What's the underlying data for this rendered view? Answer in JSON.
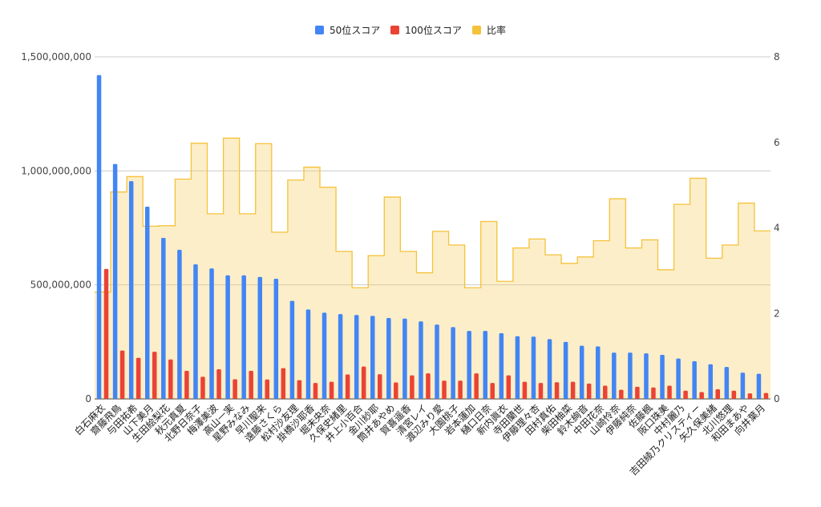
{
  "chart_data": {
    "type": "bar",
    "categories": [
      "白石麻衣",
      "齋藤飛鳥",
      "与田祐希",
      "山下美月",
      "生田絵梨花",
      "秋元真夏",
      "北野日奈子",
      "梅澤美波",
      "高山一実",
      "星野みなみ",
      "早川聖来",
      "遠藤さくら",
      "松村沙友理",
      "掛橋沙耶香",
      "堀未央奈",
      "久保史緒里",
      "井上小百合",
      "金川紗耶",
      "筒井あやめ",
      "賀喜遥香",
      "清宮レイ",
      "渡辺みり愛",
      "大園桃子",
      "岩本蓮加",
      "樋口日奈",
      "新内眞衣",
      "寺田蘭世",
      "伊藤理々杏",
      "田村真佑",
      "柴田柚菜",
      "鈴木絢音",
      "中田花奈",
      "山崎怜奈",
      "伊藤純奈",
      "佐藤楓",
      "阪口珠美",
      "中村麗乃",
      "吉田綾乃クリスティー",
      "矢久保美緒",
      "北川悠理",
      "和田まあや",
      "向井葉月"
    ],
    "series": [
      {
        "name": "50位スコア",
        "axis": "left",
        "color": "#4285f4",
        "values": [
          1420000000,
          1030000000,
          955000000,
          843000000,
          706000000,
          654000000,
          590000000,
          572000000,
          542000000,
          542000000,
          535000000,
          527000000,
          430000000,
          392000000,
          378000000,
          372000000,
          368000000,
          364000000,
          355000000,
          352000000,
          340000000,
          326000000,
          315000000,
          298000000,
          298000000,
          288000000,
          275000000,
          273000000,
          262000000,
          250000000,
          233000000,
          230000000,
          203000000,
          203000000,
          200000000,
          193000000,
          177000000,
          165000000,
          152000000,
          140000000,
          115000000,
          110000000
        ]
      },
      {
        "name": "100位スコア",
        "axis": "left",
        "color": "#ea4335",
        "values": [
          570000000,
          212000000,
          180000000,
          207000000,
          173000000,
          123000000,
          97000000,
          130000000,
          86000000,
          123000000,
          85000000,
          135000000,
          82000000,
          70000000,
          75000000,
          107000000,
          142000000,
          108000000,
          72000000,
          103000000,
          112000000,
          80000000,
          80000000,
          112000000,
          70000000,
          103000000,
          75000000,
          70000000,
          73000000,
          75000000,
          67000000,
          58000000,
          40000000,
          53000000,
          50000000,
          58000000,
          36000000,
          30000000,
          42000000,
          36000000,
          24000000,
          26000000
        ]
      },
      {
        "name": "比率",
        "axis": "right",
        "type": "stepped-area",
        "color": "#f4c23b",
        "values": [
          2.5,
          4.84,
          5.2,
          4.04,
          4.05,
          5.14,
          5.98,
          4.33,
          6.1,
          4.33,
          5.97,
          3.9,
          5.12,
          5.42,
          4.95,
          3.45,
          2.6,
          3.35,
          4.72,
          3.45,
          2.95,
          3.92,
          3.6,
          2.6,
          4.15,
          2.75,
          3.53,
          3.74,
          3.37,
          3.17,
          3.32,
          3.7,
          4.68,
          3.53,
          3.72,
          3.02,
          4.55,
          5.16,
          3.29,
          3.6,
          4.58,
          3.93
        ]
      }
    ],
    "left_axis": {
      "min": 0,
      "max": 1500000000,
      "ticks": [
        0,
        500000000,
        1000000000,
        1500000000
      ],
      "tick_labels": [
        "0",
        "500,000,000",
        "1,000,000,000",
        "1,500,000,000"
      ]
    },
    "right_axis": {
      "min": 0,
      "max": 8,
      "ticks": [
        0,
        2,
        4,
        6,
        8
      ],
      "tick_labels": [
        "0",
        "2",
        "4",
        "6",
        "8"
      ]
    },
    "legend_position": "top-center",
    "grid": true,
    "gridline_color": "#cccccc",
    "title": "",
    "xlabel": "",
    "ylabel": ""
  }
}
